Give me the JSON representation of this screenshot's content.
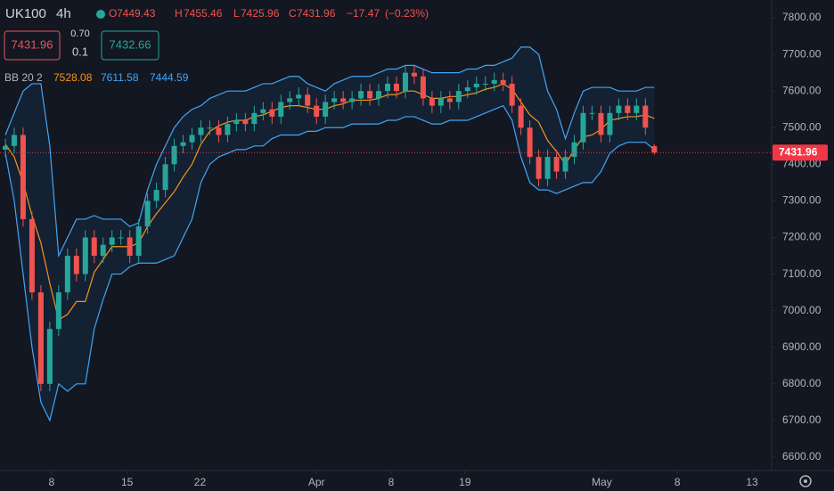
{
  "header": {
    "symbol": "UK100",
    "interval": "4h",
    "open_label": "O",
    "open": 7449.43,
    "high_label": "H",
    "high": 7455.46,
    "low_label": "L",
    "low": 7425.96,
    "close_label": "C",
    "close": 7431.96,
    "change": "−17.47",
    "change_pct": "(−0.23%)"
  },
  "trade": {
    "sell": "7431.96",
    "spread": "0.70",
    "quantity": "0.1",
    "buy": "7432.66"
  },
  "chart_data": {
    "type": "candlestick",
    "up_color": "#26a69a",
    "down_color": "#ef5350",
    "ylim": [
      6600,
      7800
    ],
    "yticks": [
      {
        "value": 6600,
        "label": "6600.00"
      },
      {
        "value": 6700,
        "label": "6700.00"
      },
      {
        "value": 6800,
        "label": "6800.00"
      },
      {
        "value": 6900,
        "label": "6900.00"
      },
      {
        "value": 7000,
        "label": "7000.00"
      },
      {
        "value": 7100,
        "label": "7100.00"
      },
      {
        "value": 7200,
        "label": "7200.00"
      },
      {
        "value": 7300,
        "label": "7300.00"
      },
      {
        "value": 7400,
        "label": "7400.00"
      },
      {
        "value": 7500,
        "label": "7500.00"
      },
      {
        "value": 7600,
        "label": "7600.00"
      },
      {
        "value": 7700,
        "label": "7700.00"
      },
      {
        "value": 7800,
        "label": "7800.00"
      }
    ],
    "xlim": [
      -0.3,
      86.5
    ],
    "xticks": [
      {
        "value": 5.2,
        "label": "8"
      },
      {
        "value": 13.7,
        "label": "15"
      },
      {
        "value": 21.9,
        "label": "22"
      },
      {
        "value": 35.0,
        "label": "Apr"
      },
      {
        "value": 43.4,
        "label": "8"
      },
      {
        "value": 51.7,
        "label": "19"
      },
      {
        "value": 67.1,
        "label": "May"
      },
      {
        "value": 75.6,
        "label": "8"
      },
      {
        "value": 84.0,
        "label": "13"
      }
    ],
    "last_price": {
      "value": 7431.96,
      "label": "7431.96",
      "color": "#f23645"
    },
    "open": [
      7440,
      7450,
      7480,
      7250,
      7050,
      6800,
      6950,
      7050,
      7150,
      7100,
      7200,
      7150,
      7180,
      7200,
      7200,
      7150,
      7230,
      7300,
      7330,
      7400,
      7450,
      7460,
      7480,
      7500,
      7500,
      7480,
      7510,
      7520,
      7510,
      7540,
      7550,
      7530,
      7570,
      7580,
      7590,
      7560,
      7530,
      7570,
      7580,
      7570,
      7580,
      7600,
      7580,
      7600,
      7620,
      7600,
      7650,
      7640,
      7580,
      7560,
      7580,
      7570,
      7600,
      7610,
      7620,
      7620,
      7630,
      7620,
      7560,
      7500,
      7420,
      7360,
      7420,
      7380,
      7420,
      7460,
      7540,
      7540,
      7480,
      7540,
      7560,
      7540,
      7560,
      7449.43
    ],
    "high": [
      7470,
      7500,
      7500,
      7270,
      7070,
      6970,
      7070,
      7170,
      7170,
      7220,
      7220,
      7200,
      7220,
      7220,
      7220,
      7250,
      7320,
      7350,
      7420,
      7470,
      7480,
      7500,
      7520,
      7520,
      7520,
      7530,
      7540,
      7540,
      7560,
      7570,
      7570,
      7590,
      7600,
      7610,
      7610,
      7580,
      7590,
      7600,
      7600,
      7600,
      7620,
      7620,
      7620,
      7640,
      7640,
      7670,
      7670,
      7660,
      7600,
      7600,
      7600,
      7620,
      7630,
      7640,
      7640,
      7650,
      7650,
      7640,
      7580,
      7520,
      7440,
      7440,
      7440,
      7440,
      7480,
      7560,
      7560,
      7560,
      7560,
      7580,
      7580,
      7580,
      7580,
      7455.46
    ],
    "low": [
      7420,
      7430,
      7230,
      7030,
      6780,
      6780,
      6930,
      7030,
      7080,
      7080,
      7130,
      7130,
      7160,
      7180,
      7130,
      7130,
      7210,
      7280,
      7310,
      7380,
      7430,
      7440,
      7460,
      7480,
      7460,
      7460,
      7490,
      7490,
      7490,
      7520,
      7510,
      7510,
      7550,
      7560,
      7540,
      7510,
      7510,
      7550,
      7550,
      7550,
      7560,
      7560,
      7560,
      7580,
      7580,
      7580,
      7620,
      7560,
      7540,
      7540,
      7550,
      7550,
      7580,
      7590,
      7600,
      7600,
      7600,
      7540,
      7480,
      7400,
      7340,
      7340,
      7360,
      7360,
      7400,
      7440,
      7520,
      7460,
      7460,
      7520,
      7520,
      7520,
      7480,
      7425.96
    ],
    "close": [
      7450,
      7480,
      7250,
      7050,
      6800,
      6950,
      7050,
      7150,
      7100,
      7200,
      7150,
      7180,
      7200,
      7200,
      7150,
      7230,
      7300,
      7330,
      7400,
      7450,
      7460,
      7480,
      7500,
      7500,
      7480,
      7510,
      7520,
      7510,
      7540,
      7550,
      7530,
      7570,
      7580,
      7590,
      7560,
      7530,
      7570,
      7580,
      7570,
      7580,
      7600,
      7580,
      7600,
      7620,
      7600,
      7650,
      7640,
      7580,
      7560,
      7580,
      7570,
      7600,
      7610,
      7620,
      7620,
      7630,
      7620,
      7560,
      7500,
      7420,
      7360,
      7420,
      7380,
      7420,
      7460,
      7540,
      7540,
      7480,
      7540,
      7560,
      7540,
      7560,
      7500,
      7431.96
    ],
    "bollinger": {
      "label": "BB 20 2",
      "basis_value": 7528.08,
      "upper_value": 7611.58,
      "lower_value": 7444.59,
      "basis_color": "#f7931a",
      "band_color": "#42a5f5",
      "upper": [
        7480,
        7540,
        7600,
        7620,
        7620,
        7450,
        7150,
        7200,
        7250,
        7250,
        7260,
        7250,
        7250,
        7250,
        7230,
        7240,
        7330,
        7400,
        7450,
        7500,
        7530,
        7550,
        7560,
        7580,
        7590,
        7600,
        7600,
        7600,
        7610,
        7620,
        7620,
        7630,
        7640,
        7640,
        7620,
        7610,
        7600,
        7620,
        7630,
        7640,
        7640,
        7640,
        7650,
        7660,
        7660,
        7670,
        7670,
        7660,
        7650,
        7650,
        7650,
        7650,
        7660,
        7660,
        7670,
        7670,
        7680,
        7690,
        7720,
        7720,
        7700,
        7600,
        7550,
        7470,
        7540,
        7600,
        7610,
        7610,
        7610,
        7600,
        7600,
        7600,
        7610,
        7610
      ],
      "basis": [
        7455,
        7420,
        7350,
        7260,
        7185,
        7075,
        6975,
        6990,
        7025,
        7025,
        7105,
        7140,
        7175,
        7175,
        7175,
        7185,
        7230,
        7265,
        7295,
        7325,
        7365,
        7400,
        7455,
        7490,
        7505,
        7515,
        7520,
        7520,
        7530,
        7535,
        7545,
        7555,
        7560,
        7560,
        7555,
        7550,
        7550,
        7560,
        7565,
        7575,
        7575,
        7575,
        7580,
        7590,
        7590,
        7600,
        7600,
        7590,
        7580,
        7580,
        7585,
        7585,
        7590,
        7595,
        7605,
        7610,
        7620,
        7605,
        7570,
        7535,
        7515,
        7465,
        7435,
        7400,
        7440,
        7475,
        7480,
        7495,
        7520,
        7525,
        7530,
        7530,
        7535,
        7525
      ],
      "lower": [
        7430,
        7300,
        7100,
        6900,
        6750,
        6700,
        6800,
        6780,
        6800,
        6800,
        6950,
        7030,
        7100,
        7100,
        7120,
        7130,
        7130,
        7130,
        7140,
        7150,
        7200,
        7250,
        7350,
        7400,
        7420,
        7430,
        7440,
        7440,
        7450,
        7450,
        7470,
        7480,
        7480,
        7480,
        7490,
        7490,
        7500,
        7500,
        7500,
        7510,
        7510,
        7510,
        7510,
        7520,
        7520,
        7530,
        7530,
        7520,
        7510,
        7510,
        7520,
        7520,
        7520,
        7530,
        7540,
        7550,
        7560,
        7520,
        7420,
        7350,
        7330,
        7330,
        7320,
        7330,
        7340,
        7350,
        7350,
        7380,
        7430,
        7450,
        7460,
        7460,
        7460,
        7440
      ]
    }
  }
}
